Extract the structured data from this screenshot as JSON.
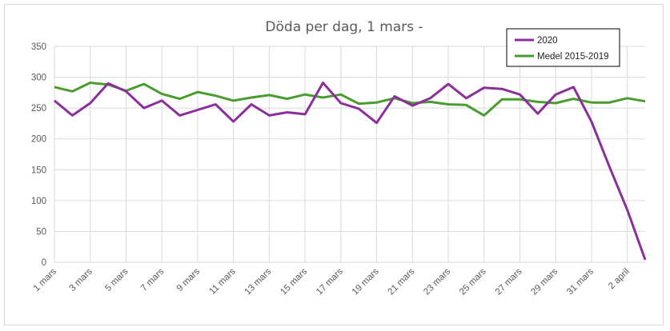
{
  "chart_data": {
    "type": "line",
    "title": "Döda per dag, 1 mars -",
    "xlabel": "",
    "ylabel": "",
    "ylim": [
      0,
      350
    ],
    "yticks": [
      "0",
      "50",
      "100",
      "150",
      "200",
      "250",
      "300",
      "350"
    ],
    "grid": true,
    "legend_position": "top-right",
    "x": [
      "1 mars",
      "2 mars",
      "3 mars",
      "4 mars",
      "5 mars",
      "6 mars",
      "7 mars",
      "8 mars",
      "9 mars",
      "10 mars",
      "11 mars",
      "12 mars",
      "13 mars",
      "14 mars",
      "15 mars",
      "16 mars",
      "17 mars",
      "18 mars",
      "19 mars",
      "20 mars",
      "21 mars",
      "22 mars",
      "23 mars",
      "24 mars",
      "25 mars",
      "26 mars",
      "27 mars",
      "28 mars",
      "29 mars",
      "30 mars",
      "31 mars",
      "1 april",
      "2 april",
      "3 april"
    ],
    "xtick_labels": [
      "1 mars",
      "3 mars",
      "5 mars",
      "7 mars",
      "9 mars",
      "11 mars",
      "13 mars",
      "15 mars",
      "17 mars",
      "19 mars",
      "21 mars",
      "23 mars",
      "25 mars",
      "27 mars",
      "29 mars",
      "31 mars",
      "2 april"
    ],
    "series": [
      {
        "name": "2020",
        "color": "#8b2f9b",
        "values": [
          262,
          238,
          258,
          290,
          277,
          250,
          262,
          238,
          247,
          256,
          228,
          256,
          238,
          243,
          240,
          291,
          258,
          249,
          226,
          269,
          254,
          266,
          289,
          266,
          283,
          281,
          272,
          241,
          272,
          284,
          228,
          155,
          85,
          4
        ]
      },
      {
        "name": "Medel 2015-2019",
        "color": "#4a9c2f",
        "values": [
          284,
          277,
          291,
          288,
          278,
          289,
          273,
          265,
          276,
          270,
          262,
          267,
          271,
          265,
          272,
          267,
          272,
          257,
          259,
          266,
          258,
          260,
          256,
          255,
          238,
          264,
          264,
          260,
          258,
          265,
          259,
          259,
          266,
          261
        ]
      }
    ]
  }
}
